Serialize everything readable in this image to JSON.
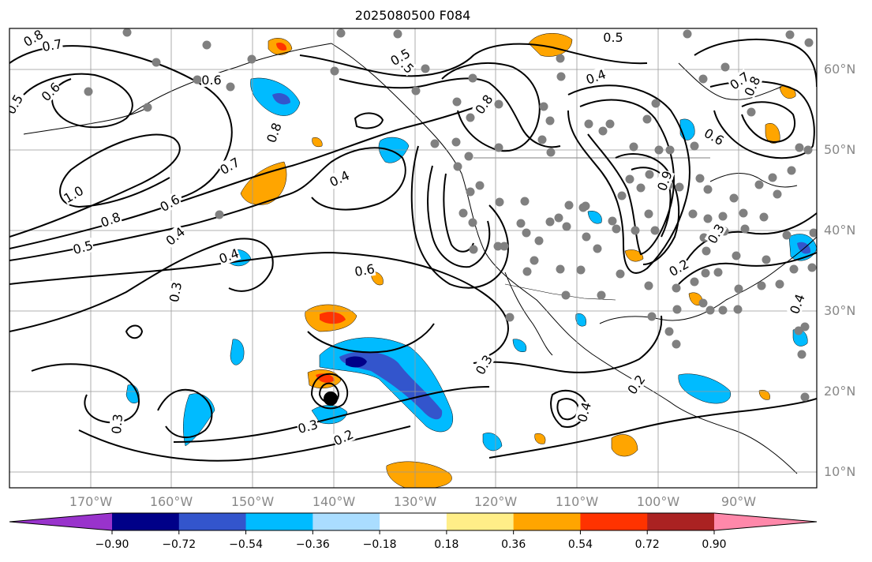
{
  "title": "2025080500 F084",
  "map": {
    "lon_labels": [
      "170°W",
      "160°W",
      "150°W",
      "140°W",
      "130°W",
      "120°W",
      "110°W",
      "100°W",
      "90°W"
    ],
    "lat_labels": [
      "60°N",
      "50°N",
      "40°N",
      "30°N",
      "20°N",
      "10°N"
    ],
    "contour_labels": [
      "0.8",
      "0.7",
      "0.5",
      "0.6",
      "1.0",
      "0.8",
      "0.5",
      "0.6",
      "0.7",
      "0.4",
      "0.4",
      "0.3",
      "0.4",
      "0.6",
      "0.3",
      "0.2",
      "0.3",
      "0.5",
      "0.8",
      "0.4",
      "0.8",
      "0.6",
      "0.7",
      "0.8",
      "0.6",
      "0.9",
      "0.3",
      "0.2",
      "0.2",
      "0.4",
      "0.3",
      "0.5",
      "0.4",
      "0.5"
    ],
    "storm_marker": "hurricane-symbol"
  },
  "colorbar": {
    "colors": [
      "#9933cc",
      "#000088",
      "#3355cc",
      "#00bbff",
      "#aaddff",
      "#ffffff",
      "#ffee88",
      "#ffa500",
      "#ff3300",
      "#aa2222",
      "#ff88aa"
    ],
    "tick_labels": [
      "−0.90",
      "−0.72",
      "−0.54",
      "−0.36",
      "−0.18",
      "0.18",
      "0.36",
      "0.54",
      "0.72",
      "0.90"
    ]
  },
  "legend_colors": {
    "grid": "#999999",
    "station": "#808080",
    "contour": "#000000"
  }
}
